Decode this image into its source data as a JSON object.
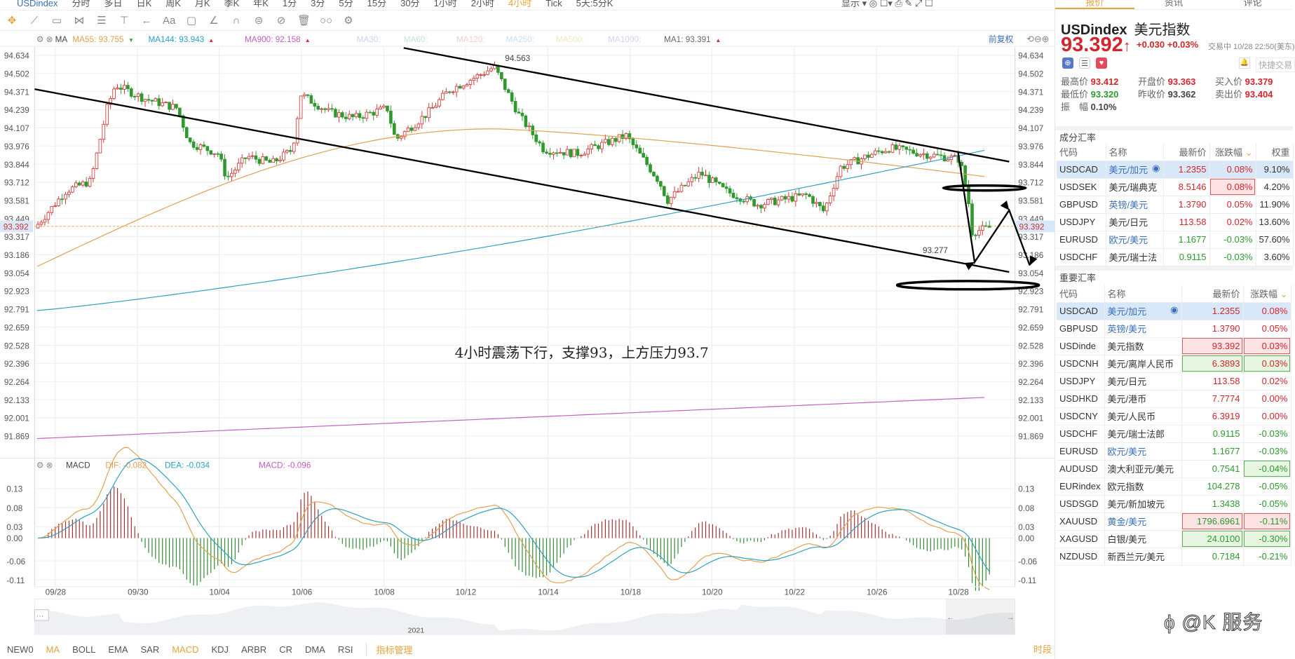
{
  "periods": {
    "symbol": "USDindex",
    "items": [
      "分时",
      "多日",
      "日K",
      "周K",
      "月K",
      "季K",
      "年K",
      "1分",
      "3分",
      "5分",
      "15分",
      "30分",
      "1小时",
      "2小时",
      "4小时",
      "Tick",
      "5天:5分K"
    ],
    "active": "4小时",
    "display_label": "显示"
  },
  "toolbar": {
    "icons": [
      "move-icon",
      "line-tool-icon",
      "rect-tool-icon",
      "pattern-tool-icon",
      "fib-tool-icon",
      "measure-tool-icon",
      "arrow-tool-icon",
      "text-tool-icon",
      "comment-icon",
      "angle-icon",
      "magnet-icon",
      "lock-icon",
      "hide-icon",
      "delete-icon",
      "compare-icon",
      "settings-icon"
    ],
    "text_label": "Aa"
  },
  "ma_legend": {
    "name": "MA",
    "items": [
      {
        "label": "MA55: 93.755",
        "color": "#e0a050",
        "trend": "down"
      },
      {
        "label": "MA144: 93.943",
        "color": "#2ba0c0",
        "trend": "up"
      },
      {
        "label": "MA900: 92.158",
        "color": "#c060c0",
        "trend": "up"
      },
      {
        "label": "MA30:",
        "color": "#c8d8e8"
      },
      {
        "label": "MA60:",
        "color": "#c8e0e0"
      },
      {
        "label": "MA120:",
        "color": "#f0d0c8"
      },
      {
        "label": "MA250:",
        "color": "#c8e0f0"
      },
      {
        "label": "MA500:",
        "color": "#f0e8c0"
      },
      {
        "label": "MA1000:",
        "color": "#d8d0e8"
      },
      {
        "label": "MA1: 93.391",
        "color": "#666",
        "trend": "up"
      }
    ],
    "adjust_label": "前复权"
  },
  "price_axis": {
    "ticks": [
      "94.634",
      "94.502",
      "94.371",
      "94.239",
      "94.107",
      "93.976",
      "93.844",
      "93.712",
      "93.581",
      "93.449",
      "93.317",
      "93.186",
      "93.054",
      "92.923",
      "92.791",
      "92.659",
      "92.528",
      "92.396",
      "92.264",
      "92.133",
      "92.001",
      "91.869"
    ],
    "current": "93.392"
  },
  "chart_labels": {
    "high": "94.563",
    "low": "93.277",
    "annotation": "4小时震荡下行，支撑93，上方压力93.7"
  },
  "macd_legend": {
    "name": "MACD",
    "dif": "DIF: -0.082",
    "dea": "DEA: -0.034",
    "macd": "MACD: -0.096",
    "colors": {
      "dif": "#e0a050",
      "dea": "#2ba0c0",
      "macd": "#c060c0"
    }
  },
  "macd_axis": {
    "ticks": [
      "0.13",
      "0.08",
      "0.03",
      "0.00",
      "-0.06",
      "-0.11"
    ]
  },
  "dates": [
    "09/28",
    "09/30",
    "10/04",
    "10/06",
    "10/08",
    "10/12",
    "10/14",
    "10/18",
    "10/20",
    "10/22",
    "10/26",
    "10/28"
  ],
  "navigator": {
    "year": "2021"
  },
  "indicators": {
    "items": [
      "NEW0",
      "MA",
      "BOLL",
      "EMA",
      "SAR",
      "MACD",
      "KDJ",
      "ARBR",
      "CR",
      "DMA",
      "RSI"
    ],
    "active": [
      "MA",
      "MACD"
    ],
    "manage": "指标管理",
    "period_label": "时段"
  },
  "panel": {
    "tabs": [
      "报价",
      "资讯",
      "评论"
    ],
    "symbol": "USDindex",
    "name": "美元指数",
    "price": "93.392",
    "change": "+0.030 +0.03%",
    "status": "交易中 10/28 22:50(美东)",
    "quick_trade": "快捷交易",
    "stats": [
      [
        "最高价",
        "93.412",
        "red"
      ],
      [
        "开盘价",
        "93.363",
        "red"
      ],
      [
        "买入价",
        "93.379",
        "red"
      ],
      [
        "最低价",
        "93.320",
        "green"
      ],
      [
        "昨收价",
        "93.362",
        ""
      ],
      [
        "卖出价",
        "93.404",
        "red"
      ],
      [
        "振　幅",
        "0.10%",
        ""
      ]
    ],
    "components": {
      "title": "成分汇率",
      "headers": [
        "代码",
        "名称",
        "最新价",
        "涨跌幅",
        "权重"
      ],
      "rows": [
        [
          "USDCAD",
          "美元/加元",
          "1.2355",
          "0.08%",
          "9.10%"
        ],
        [
          "USDSEK",
          "美元/瑞典克",
          "8.5146",
          "0.08%",
          "4.20%"
        ],
        [
          "GBPUSD",
          "英镑/美元",
          "1.3790",
          "0.05%",
          "11.90%"
        ],
        [
          "USDJPY",
          "美元/日元",
          "113.58",
          "0.02%",
          "13.60%"
        ],
        [
          "EURUSD",
          "欧元/美元",
          "1.1677",
          "-0.03%",
          "57.60%"
        ],
        [
          "USDCHF",
          "美元/瑞士法",
          "0.9115",
          "-0.03%",
          "3.60%"
        ]
      ]
    },
    "major": {
      "title": "重要汇率",
      "headers": [
        "代码",
        "名称",
        "最新价",
        "涨跌幅"
      ],
      "rows": [
        [
          "USDCAD",
          "美元/加元",
          "1.2355",
          "0.08%"
        ],
        [
          "GBPUSD",
          "英镑/美元",
          "1.3790",
          "0.05%"
        ],
        [
          "USDinde",
          "美元指数",
          "93.392",
          "0.03%"
        ],
        [
          "USDCNH",
          "美元/离岸人民币",
          "6.3893",
          "0.03%"
        ],
        [
          "USDJPY",
          "美元/日元",
          "113.58",
          "0.02%"
        ],
        [
          "USDHKD",
          "美元/港币",
          "7.7774",
          "0.00%"
        ],
        [
          "USDCNY",
          "美元/人民币",
          "6.3919",
          "0.00%"
        ],
        [
          "USDCHF",
          "美元/瑞士法郎",
          "0.9115",
          "-0.03%"
        ],
        [
          "EURUSD",
          "欧元/美元",
          "1.1677",
          "-0.03%"
        ],
        [
          "AUDUSD",
          "澳大利亚元/美元",
          "0.7541",
          "-0.04%"
        ],
        [
          "EURindex",
          "欧元指数",
          "104.278",
          "-0.05%"
        ],
        [
          "USDSGD",
          "美元/新加坡元",
          "1.3438",
          "-0.05%"
        ],
        [
          "XAUUSD",
          "黄金/美元",
          "1796.6961",
          "-0.11%"
        ],
        [
          "XAGUSD",
          "白银/美元",
          "24.0100",
          "-0.30%"
        ],
        [
          "NZDUSD",
          "新西兰元/美元",
          "0.7184",
          "-0.21%"
        ]
      ]
    }
  },
  "watermark": "@K 服务",
  "colors": {
    "up": "#d03030",
    "down": "#2e9a2e",
    "accent": "#e8a33d",
    "price_red": "#d5252c"
  }
}
